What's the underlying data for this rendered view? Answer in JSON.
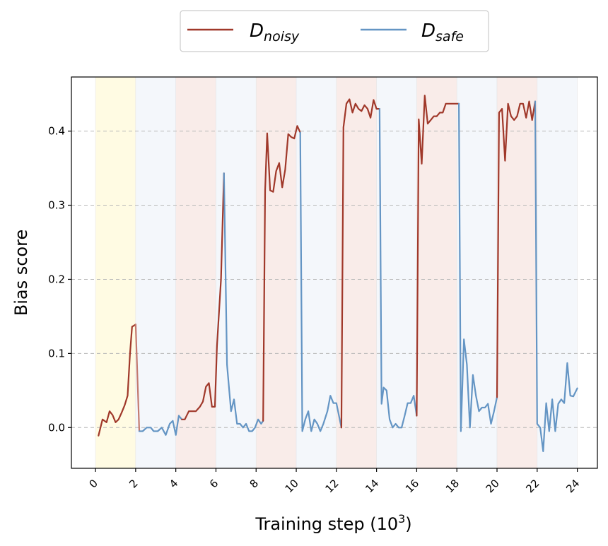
{
  "chart_data": {
    "type": "line",
    "xlabel": "Training step (10",
    "xlabel_sup": "3",
    "xlabel_close": ")",
    "ylabel": "Bias score",
    "xlim": [
      -1.2,
      25.0
    ],
    "ylim": [
      -0.055,
      0.473
    ],
    "x_ticks": [
      0,
      2,
      4,
      6,
      8,
      10,
      12,
      14,
      16,
      18,
      20,
      22,
      24
    ],
    "x_tick_labels": [
      "0",
      "2",
      "4",
      "6",
      "8",
      "10",
      "12",
      "14",
      "16",
      "18",
      "20",
      "22",
      "24"
    ],
    "y_ticks": [
      0.0,
      0.1,
      0.2,
      0.3,
      0.4
    ],
    "y_tick_labels": [
      "0.0",
      "0.1",
      "0.2",
      "0.3",
      "0.4"
    ],
    "grid": "horizontal dashed",
    "legend_placement": "top-center outside",
    "legend": [
      {
        "main": "D",
        "sub": "noisy",
        "color": "#a0382a"
      },
      {
        "main": "D",
        "sub": "safe",
        "color": "#6495c4"
      }
    ],
    "background_bands": [
      {
        "x0": 0,
        "x1": 2,
        "color": "#fffbe3"
      },
      {
        "x0": 2,
        "x1": 4,
        "color": "#f4f7fb"
      },
      {
        "x0": 4,
        "x1": 6,
        "color": "#f9ece9"
      },
      {
        "x0": 6,
        "x1": 8,
        "color": "#f4f7fb"
      },
      {
        "x0": 8,
        "x1": 10,
        "color": "#f9ece9"
      },
      {
        "x0": 10,
        "x1": 12,
        "color": "#f4f7fb"
      },
      {
        "x0": 12,
        "x1": 14,
        "color": "#f9ece9"
      },
      {
        "x0": 14,
        "x1": 16,
        "color": "#f4f7fb"
      },
      {
        "x0": 16,
        "x1": 18,
        "color": "#f9ece9"
      },
      {
        "x0": 18,
        "x1": 20,
        "color": "#f4f7fb"
      },
      {
        "x0": 20,
        "x1": 22,
        "color": "#f9ece9"
      },
      {
        "x0": 22,
        "x1": 24,
        "color": "#f4f7fb"
      }
    ],
    "segments": [
      {
        "series": "noisy",
        "color": "#a0382a",
        "points": [
          [
            0.15,
            -0.011
          ],
          [
            0.35,
            0.011
          ],
          [
            0.55,
            0.007
          ],
          [
            0.7,
            0.022
          ],
          [
            0.85,
            0.017
          ],
          [
            1.0,
            0.007
          ],
          [
            1.15,
            0.011
          ],
          [
            1.3,
            0.02
          ],
          [
            1.45,
            0.03
          ],
          [
            1.6,
            0.043
          ],
          [
            1.72,
            0.1
          ],
          [
            1.82,
            0.136
          ],
          [
            2.0,
            0.139
          ]
        ]
      },
      {
        "series": "noisy",
        "color": "#c47a6e",
        "points": [
          [
            2.0,
            0.139
          ],
          [
            2.18,
            -0.005
          ]
        ]
      },
      {
        "series": "safe",
        "color": "#6495c4",
        "points": [
          [
            2.18,
            -0.005
          ],
          [
            2.35,
            -0.005
          ],
          [
            2.55,
            0.0
          ],
          [
            2.75,
            0.0
          ],
          [
            2.9,
            -0.005
          ],
          [
            3.1,
            -0.005
          ],
          [
            3.3,
            0.0
          ],
          [
            3.5,
            -0.01
          ],
          [
            3.7,
            0.005
          ],
          [
            3.85,
            0.009
          ],
          [
            4.0,
            -0.01
          ],
          [
            4.15,
            0.016
          ],
          [
            4.3,
            0.011
          ]
        ]
      },
      {
        "series": "noisy",
        "color": "#a0382a",
        "points": [
          [
            4.3,
            0.011
          ],
          [
            4.45,
            0.011
          ],
          [
            4.65,
            0.022
          ],
          [
            4.85,
            0.022
          ],
          [
            5.0,
            0.022
          ],
          [
            5.2,
            0.028
          ],
          [
            5.35,
            0.035
          ],
          [
            5.5,
            0.055
          ],
          [
            5.65,
            0.06
          ],
          [
            5.8,
            0.028
          ],
          [
            5.95,
            0.028
          ],
          [
            6.05,
            0.11
          ],
          [
            6.25,
            0.2
          ],
          [
            6.4,
            0.343
          ]
        ]
      },
      {
        "series": "safe",
        "color": "#6495c4",
        "points": [
          [
            6.4,
            0.343
          ],
          [
            6.55,
            0.085
          ],
          [
            6.75,
            0.022
          ],
          [
            6.9,
            0.038
          ],
          [
            7.05,
            0.005
          ],
          [
            7.2,
            0.005
          ],
          [
            7.35,
            0.0
          ],
          [
            7.5,
            0.005
          ],
          [
            7.65,
            -0.005
          ],
          [
            7.8,
            -0.005
          ],
          [
            7.95,
            0.0
          ],
          [
            8.1,
            0.011
          ],
          [
            8.25,
            0.005
          ],
          [
            8.35,
            0.009
          ]
        ]
      },
      {
        "series": "noisy",
        "color": "#a0382a",
        "points": [
          [
            8.35,
            0.009
          ],
          [
            8.45,
            0.32
          ],
          [
            8.55,
            0.397
          ],
          [
            8.7,
            0.32
          ],
          [
            8.85,
            0.318
          ],
          [
            9.0,
            0.346
          ],
          [
            9.15,
            0.357
          ],
          [
            9.3,
            0.324
          ],
          [
            9.45,
            0.348
          ],
          [
            9.6,
            0.396
          ],
          [
            9.75,
            0.392
          ],
          [
            9.9,
            0.39
          ],
          [
            10.05,
            0.407
          ],
          [
            10.2,
            0.398
          ]
        ]
      },
      {
        "series": "safe",
        "color": "#6495c4",
        "points": [
          [
            10.2,
            0.398
          ],
          [
            10.3,
            -0.005
          ],
          [
            10.45,
            0.011
          ],
          [
            10.6,
            0.022
          ],
          [
            10.75,
            -0.005
          ],
          [
            10.9,
            0.011
          ],
          [
            11.05,
            0.005
          ],
          [
            11.2,
            -0.005
          ],
          [
            11.35,
            0.005
          ],
          [
            11.55,
            0.022
          ],
          [
            11.7,
            0.043
          ],
          [
            11.85,
            0.033
          ],
          [
            12.0,
            0.033
          ],
          [
            12.25,
            0.0
          ]
        ]
      },
      {
        "series": "noisy",
        "color": "#a0382a",
        "points": [
          [
            12.25,
            0.0
          ],
          [
            12.35,
            0.405
          ],
          [
            12.5,
            0.437
          ],
          [
            12.65,
            0.443
          ],
          [
            12.8,
            0.425
          ],
          [
            12.95,
            0.437
          ],
          [
            13.1,
            0.43
          ],
          [
            13.25,
            0.427
          ],
          [
            13.4,
            0.435
          ],
          [
            13.55,
            0.43
          ],
          [
            13.7,
            0.418
          ],
          [
            13.85,
            0.442
          ],
          [
            14.0,
            0.43
          ],
          [
            14.15,
            0.43
          ]
        ]
      },
      {
        "series": "safe",
        "color": "#6495c4",
        "points": [
          [
            14.15,
            0.43
          ],
          [
            14.25,
            0.032
          ],
          [
            14.35,
            0.054
          ],
          [
            14.5,
            0.05
          ],
          [
            14.65,
            0.011
          ],
          [
            14.8,
            0.0
          ],
          [
            14.95,
            0.005
          ],
          [
            15.1,
            0.0
          ],
          [
            15.25,
            0.0
          ],
          [
            15.4,
            0.016
          ],
          [
            15.55,
            0.033
          ],
          [
            15.7,
            0.033
          ],
          [
            15.85,
            0.043
          ],
          [
            16.0,
            0.016
          ]
        ]
      },
      {
        "series": "noisy",
        "color": "#a0382a",
        "points": [
          [
            16.0,
            0.016
          ],
          [
            16.1,
            0.416
          ],
          [
            16.25,
            0.356
          ],
          [
            16.4,
            0.448
          ],
          [
            16.55,
            0.41
          ],
          [
            16.7,
            0.415
          ],
          [
            16.85,
            0.42
          ],
          [
            17.0,
            0.42
          ],
          [
            17.15,
            0.425
          ],
          [
            17.3,
            0.425
          ],
          [
            17.45,
            0.437
          ],
          [
            17.6,
            0.437
          ],
          [
            17.75,
            0.437
          ],
          [
            17.9,
            0.437
          ],
          [
            18.1,
            0.437
          ]
        ]
      },
      {
        "series": "safe",
        "color": "#6495c4",
        "points": [
          [
            18.1,
            0.437
          ],
          [
            18.2,
            -0.005
          ],
          [
            18.35,
            0.119
          ],
          [
            18.5,
            0.085
          ],
          [
            18.65,
            0.0
          ],
          [
            18.8,
            0.071
          ],
          [
            18.95,
            0.043
          ],
          [
            19.1,
            0.022
          ],
          [
            19.25,
            0.027
          ],
          [
            19.4,
            0.027
          ],
          [
            19.55,
            0.032
          ],
          [
            19.7,
            0.005
          ],
          [
            19.85,
            0.022
          ],
          [
            20.0,
            0.041
          ]
        ]
      },
      {
        "series": "noisy",
        "color": "#a0382a",
        "points": [
          [
            20.0,
            0.041
          ],
          [
            20.1,
            0.425
          ],
          [
            20.25,
            0.43
          ],
          [
            20.4,
            0.36
          ],
          [
            20.55,
            0.437
          ],
          [
            20.7,
            0.42
          ],
          [
            20.85,
            0.415
          ],
          [
            21.0,
            0.42
          ],
          [
            21.15,
            0.437
          ],
          [
            21.3,
            0.437
          ],
          [
            21.45,
            0.418
          ],
          [
            21.6,
            0.44
          ],
          [
            21.75,
            0.415
          ],
          [
            21.9,
            0.44
          ]
        ]
      },
      {
        "series": "safe",
        "color": "#6495c4",
        "points": [
          [
            21.9,
            0.44
          ],
          [
            22.0,
            0.005
          ],
          [
            22.15,
            0.0
          ],
          [
            22.3,
            -0.032
          ],
          [
            22.45,
            0.033
          ],
          [
            22.6,
            -0.005
          ],
          [
            22.75,
            0.038
          ],
          [
            22.9,
            -0.005
          ],
          [
            23.05,
            0.032
          ],
          [
            23.2,
            0.038
          ],
          [
            23.35,
            0.033
          ],
          [
            23.5,
            0.087
          ],
          [
            23.65,
            0.043
          ],
          [
            23.8,
            0.042
          ],
          [
            24.0,
            0.053
          ]
        ]
      }
    ]
  }
}
